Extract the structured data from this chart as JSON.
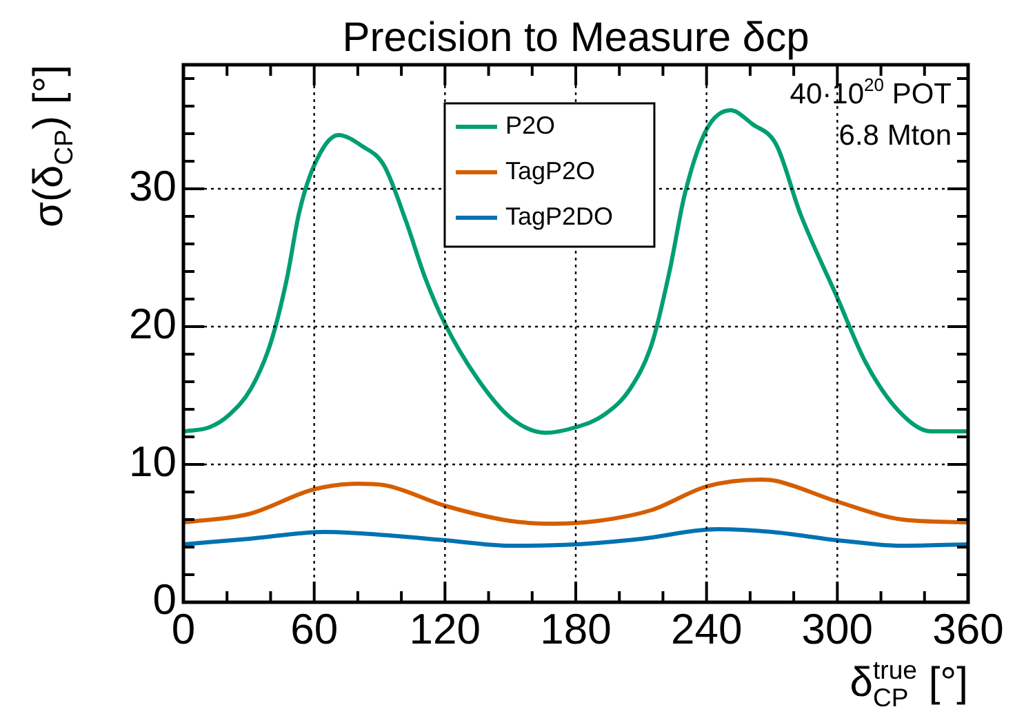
{
  "chart_data": {
    "type": "line",
    "title": "Precision to Measure δcp",
    "xlabel": "δ$_{CP}$$^{true}$ [°]",
    "ylabel": "σ(δ$_{CP}$) [°]",
    "annotations": [
      "40·10$^{20}$ POT",
      "6.8 Mton"
    ],
    "xlim": [
      0,
      360
    ],
    "ylim": [
      0,
      39
    ],
    "xticks": [
      0,
      {
        "value": 20,
        "label": null
      },
      {
        "value": 40,
        "label": null
      },
      60,
      {
        "value": 80,
        "label": null
      },
      {
        "value": 100,
        "label": null
      },
      120,
      {
        "value": 140,
        "label": null
      },
      {
        "value": 160,
        "label": null
      },
      180,
      {
        "value": 200,
        "label": null
      },
      {
        "value": 220,
        "label": null
      },
      240,
      {
        "value": 260,
        "label": null
      },
      {
        "value": 280,
        "label": null
      },
      300,
      {
        "value": 320,
        "label": null
      },
      {
        "value": 340,
        "label": null
      },
      360
    ],
    "yticks": [
      0,
      {
        "value": 2,
        "label": null
      },
      {
        "value": 4,
        "label": null
      },
      {
        "value": 6,
        "label": null
      },
      {
        "value": 8,
        "label": null
      },
      10,
      {
        "value": 12,
        "label": null
      },
      {
        "value": 14,
        "label": null
      },
      {
        "value": 16,
        "label": null
      },
      {
        "value": 18,
        "label": null
      },
      20,
      {
        "value": 22,
        "label": null
      },
      {
        "value": 24,
        "label": null
      },
      {
        "value": 26,
        "label": null
      },
      {
        "value": 28,
        "label": null
      },
      30,
      {
        "value": 32,
        "label": null
      },
      {
        "value": 34,
        "label": null
      },
      {
        "value": 36,
        "label": null
      },
      {
        "value": 38,
        "label": null
      }
    ],
    "grid": true,
    "legend": "top",
    "marker": "none",
    "line_style": "solid",
    "series": [
      {
        "name": "P2O",
        "color": "#009e73",
        "x": [
          0,
          12,
          21,
          31,
          40,
          47.5,
          53,
          60,
          71,
          82,
          92,
          102,
          111,
          120,
          135,
          150,
          166,
          180,
          193,
          205,
          215,
          223,
          230,
          240,
          251,
          261,
          272,
          283,
          300,
          313,
          328,
          343,
          360
        ],
        "values": [
          12.4,
          12.7,
          13.6,
          15.5,
          18.8,
          23.5,
          28.2,
          31.7,
          33.9,
          33.1,
          31.7,
          27.7,
          23.5,
          20.2,
          16.2,
          13.4,
          12.3,
          12.7,
          13.6,
          15.5,
          18.8,
          24,
          29.6,
          34.3,
          35.7,
          34.7,
          33.2,
          28.2,
          22.1,
          17.4,
          13.9,
          12.4,
          12.4
        ]
      },
      {
        "name": "TagP2O",
        "color": "#d55e00",
        "x": [
          0,
          30,
          60,
          80,
          92,
          120,
          150,
          170,
          190,
          215,
          240,
          265,
          272,
          300,
          330,
          360
        ],
        "values": [
          5.8,
          6.4,
          8.2,
          8.6,
          8.5,
          7.0,
          5.9,
          5.7,
          5.9,
          6.7,
          8.4,
          8.9,
          8.8,
          7.3,
          6.0,
          5.8
        ]
      },
      {
        "name": "TagP2DO",
        "color": "#0072b2",
        "x": [
          0,
          30,
          65,
          90,
          120,
          150,
          180,
          210,
          245,
          270,
          300,
          330,
          360
        ],
        "values": [
          4.2,
          4.6,
          5.1,
          4.9,
          4.5,
          4.1,
          4.2,
          4.6,
          5.3,
          5.1,
          4.5,
          4.1,
          4.2
        ]
      }
    ]
  }
}
